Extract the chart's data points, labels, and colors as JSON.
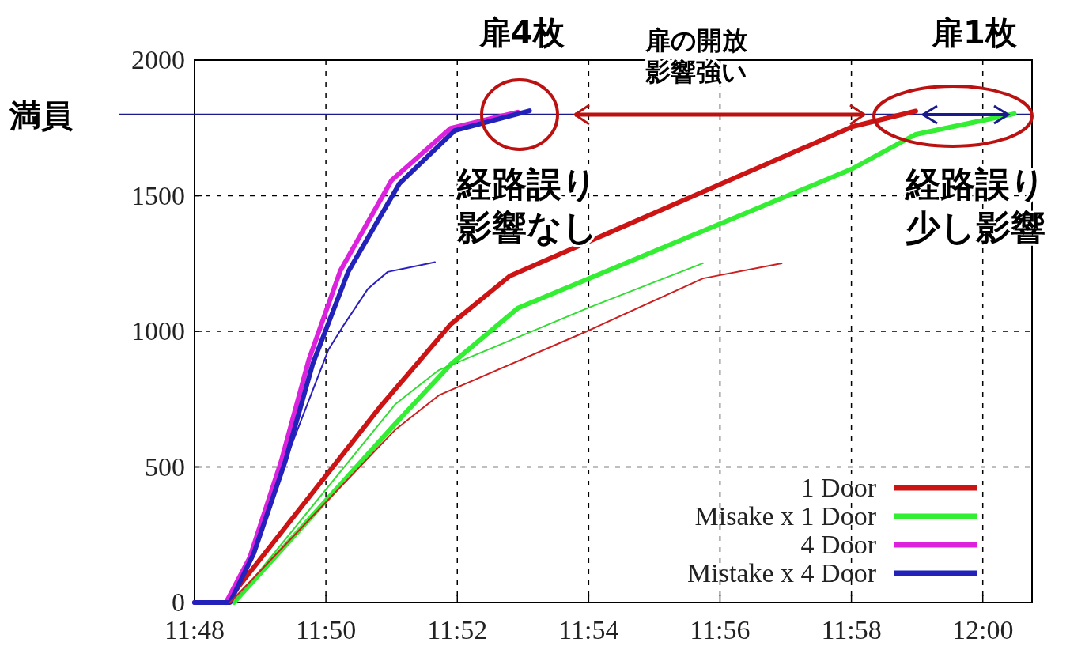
{
  "chart_data": {
    "type": "line",
    "xlim": [
      11.8,
      12.0125
    ],
    "xticks": [
      {
        "value": 11.8,
        "label": "11:48"
      },
      {
        "value": 11.83333,
        "label": "11:50"
      },
      {
        "value": 11.86667,
        "label": "11:52"
      },
      {
        "value": 11.9,
        "label": "11:54"
      },
      {
        "value": 11.93333,
        "label": "11:56"
      },
      {
        "value": 11.96667,
        "label": "11:58"
      },
      {
        "value": 12.0,
        "label": "12:00"
      }
    ],
    "ylim": [
      0,
      2000
    ],
    "yticks": [
      0,
      500,
      1000,
      1500,
      2000
    ],
    "grid": true,
    "legend": "bottom right",
    "line_style": "solid",
    "series": [
      {
        "name": "1 Door",
        "color": "#cc1414",
        "x": [
          11.808,
          11.847,
          11.865,
          11.88,
          11.967,
          11.983
        ],
        "values": [
          0,
          720,
          1026,
          1204,
          1755,
          1812
        ]
      },
      {
        "name": "Misake x 1 Door",
        "color": "#33ee33",
        "x": [
          11.81,
          11.851,
          11.865,
          11.882,
          11.967,
          11.983,
          12.008
        ],
        "values": [
          0,
          660,
          878,
          1085,
          1600,
          1726,
          1802
        ]
      },
      {
        "name": "4 Door",
        "color": "#dd22dd",
        "x": [
          11.8,
          11.808,
          11.814,
          11.822,
          11.829,
          11.837,
          11.85,
          11.865,
          11.875,
          11.882
        ],
        "values": [
          0,
          0,
          166,
          522,
          895,
          1224,
          1557,
          1749,
          1784,
          1808
        ]
      },
      {
        "name": "Mistake x 4 Door",
        "color": "#2222bb",
        "x": [
          11.8,
          11.809,
          11.815,
          11.823,
          11.83,
          11.839,
          11.852,
          11.866,
          11.885
        ],
        "values": [
          0,
          0,
          180,
          520,
          880,
          1220,
          1545,
          1740,
          1813
        ]
      },
      {
        "color": "#2a1fbf",
        "x": [
          11.809,
          11.815,
          11.823,
          11.834,
          11.838,
          11.844,
          11.849,
          11.861
        ],
        "values": [
          0,
          170,
          520,
          933,
          1026,
          1157,
          1219,
          1255
        ]
      },
      {
        "color": "#33dd33",
        "x": [
          11.81,
          11.851,
          11.862,
          11.9,
          11.929
        ],
        "values": [
          0,
          732,
          857,
          1087,
          1251
        ]
      },
      {
        "color": "#cc1f1f",
        "x": [
          11.809,
          11.851,
          11.862,
          11.9,
          11.929,
          11.949
        ],
        "values": [
          0,
          638,
          764,
          1003,
          1195,
          1251
        ]
      }
    ],
    "ref_lines": [
      {
        "axis": "y",
        "value": 1800,
        "label": "満員",
        "color": "#1a1a8c"
      }
    ],
    "annotations": [
      "扉4枚",
      "扉の開放",
      "影響強い",
      "扉1枚",
      "経路誤り",
      "影響なし",
      "経路誤り",
      "少し影響"
    ]
  }
}
